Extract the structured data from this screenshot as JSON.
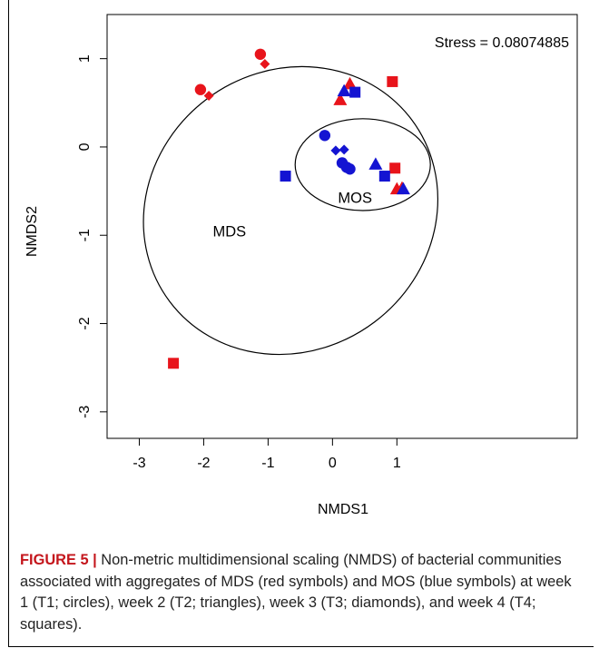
{
  "chart_data": {
    "type": "scatter",
    "xlabel": "NMDS1",
    "ylabel": "NMDS2",
    "xlim": [
      -3.5,
      3.8
    ],
    "ylim": [
      -3.3,
      1.5
    ],
    "xticks": [
      -3,
      -2,
      -1,
      0,
      1
    ],
    "yticks": [
      -3,
      -2,
      -1,
      0,
      1
    ],
    "annotation": "Stress = 0.08074885",
    "group_labels": [
      {
        "text": "MDS",
        "x": -1.6,
        "y": -0.95
      },
      {
        "text": "MOS",
        "x": 0.35,
        "y": -0.57
      }
    ],
    "colors": {
      "MDS": "#e8141b",
      "MOS": "#1414d2"
    },
    "series": [
      {
        "group": "MDS",
        "shape": "circle",
        "points": [
          [
            -2.05,
            0.65
          ],
          [
            -1.12,
            1.05
          ]
        ]
      },
      {
        "group": "MDS",
        "shape": "diamond",
        "points": [
          [
            -1.92,
            0.58
          ],
          [
            -1.05,
            0.94
          ]
        ]
      },
      {
        "group": "MDS",
        "shape": "triangle",
        "points": [
          [
            0.27,
            0.71
          ],
          [
            0.12,
            0.53
          ],
          [
            1.0,
            -0.48
          ],
          [
            1.08,
            -0.47
          ]
        ]
      },
      {
        "group": "MDS",
        "shape": "square",
        "points": [
          [
            0.93,
            0.74
          ],
          [
            0.97,
            -0.24
          ],
          [
            -2.47,
            -2.45
          ]
        ]
      },
      {
        "group": "MOS",
        "shape": "circle",
        "points": [
          [
            -0.12,
            0.13
          ],
          [
            0.15,
            -0.18
          ],
          [
            0.22,
            -0.23
          ],
          [
            0.27,
            -0.25
          ]
        ]
      },
      {
        "group": "MOS",
        "shape": "diamond",
        "points": [
          [
            0.05,
            -0.04
          ],
          [
            0.18,
            -0.03
          ]
        ]
      },
      {
        "group": "MOS",
        "shape": "triangle",
        "points": [
          [
            0.18,
            0.63
          ],
          [
            0.67,
            -0.2
          ],
          [
            1.1,
            -0.48
          ]
        ]
      },
      {
        "group": "MOS",
        "shape": "square",
        "points": [
          [
            0.35,
            0.62
          ],
          [
            -0.73,
            -0.33
          ],
          [
            0.81,
            -0.33
          ]
        ]
      }
    ],
    "ellipses": [
      {
        "group": "MDS",
        "cx": -0.65,
        "cy": -0.72,
        "rx": 2.35,
        "ry": 1.58,
        "angle": 37
      },
      {
        "group": "MOS",
        "cx": 0.47,
        "cy": -0.2,
        "rx": 1.05,
        "ry": 0.52,
        "angle": 0
      }
    ]
  },
  "caption": {
    "label": "FIGURE 5 |",
    "text": " Non-metric multidimensional scaling (NMDS) of bacterial communities associated with aggregates of MDS (red symbols) and MOS (blue symbols) at week 1 (T1; circles), week 2 (T2; triangles), week 3 (T3; diamonds), and week 4 (T4; squares)."
  }
}
